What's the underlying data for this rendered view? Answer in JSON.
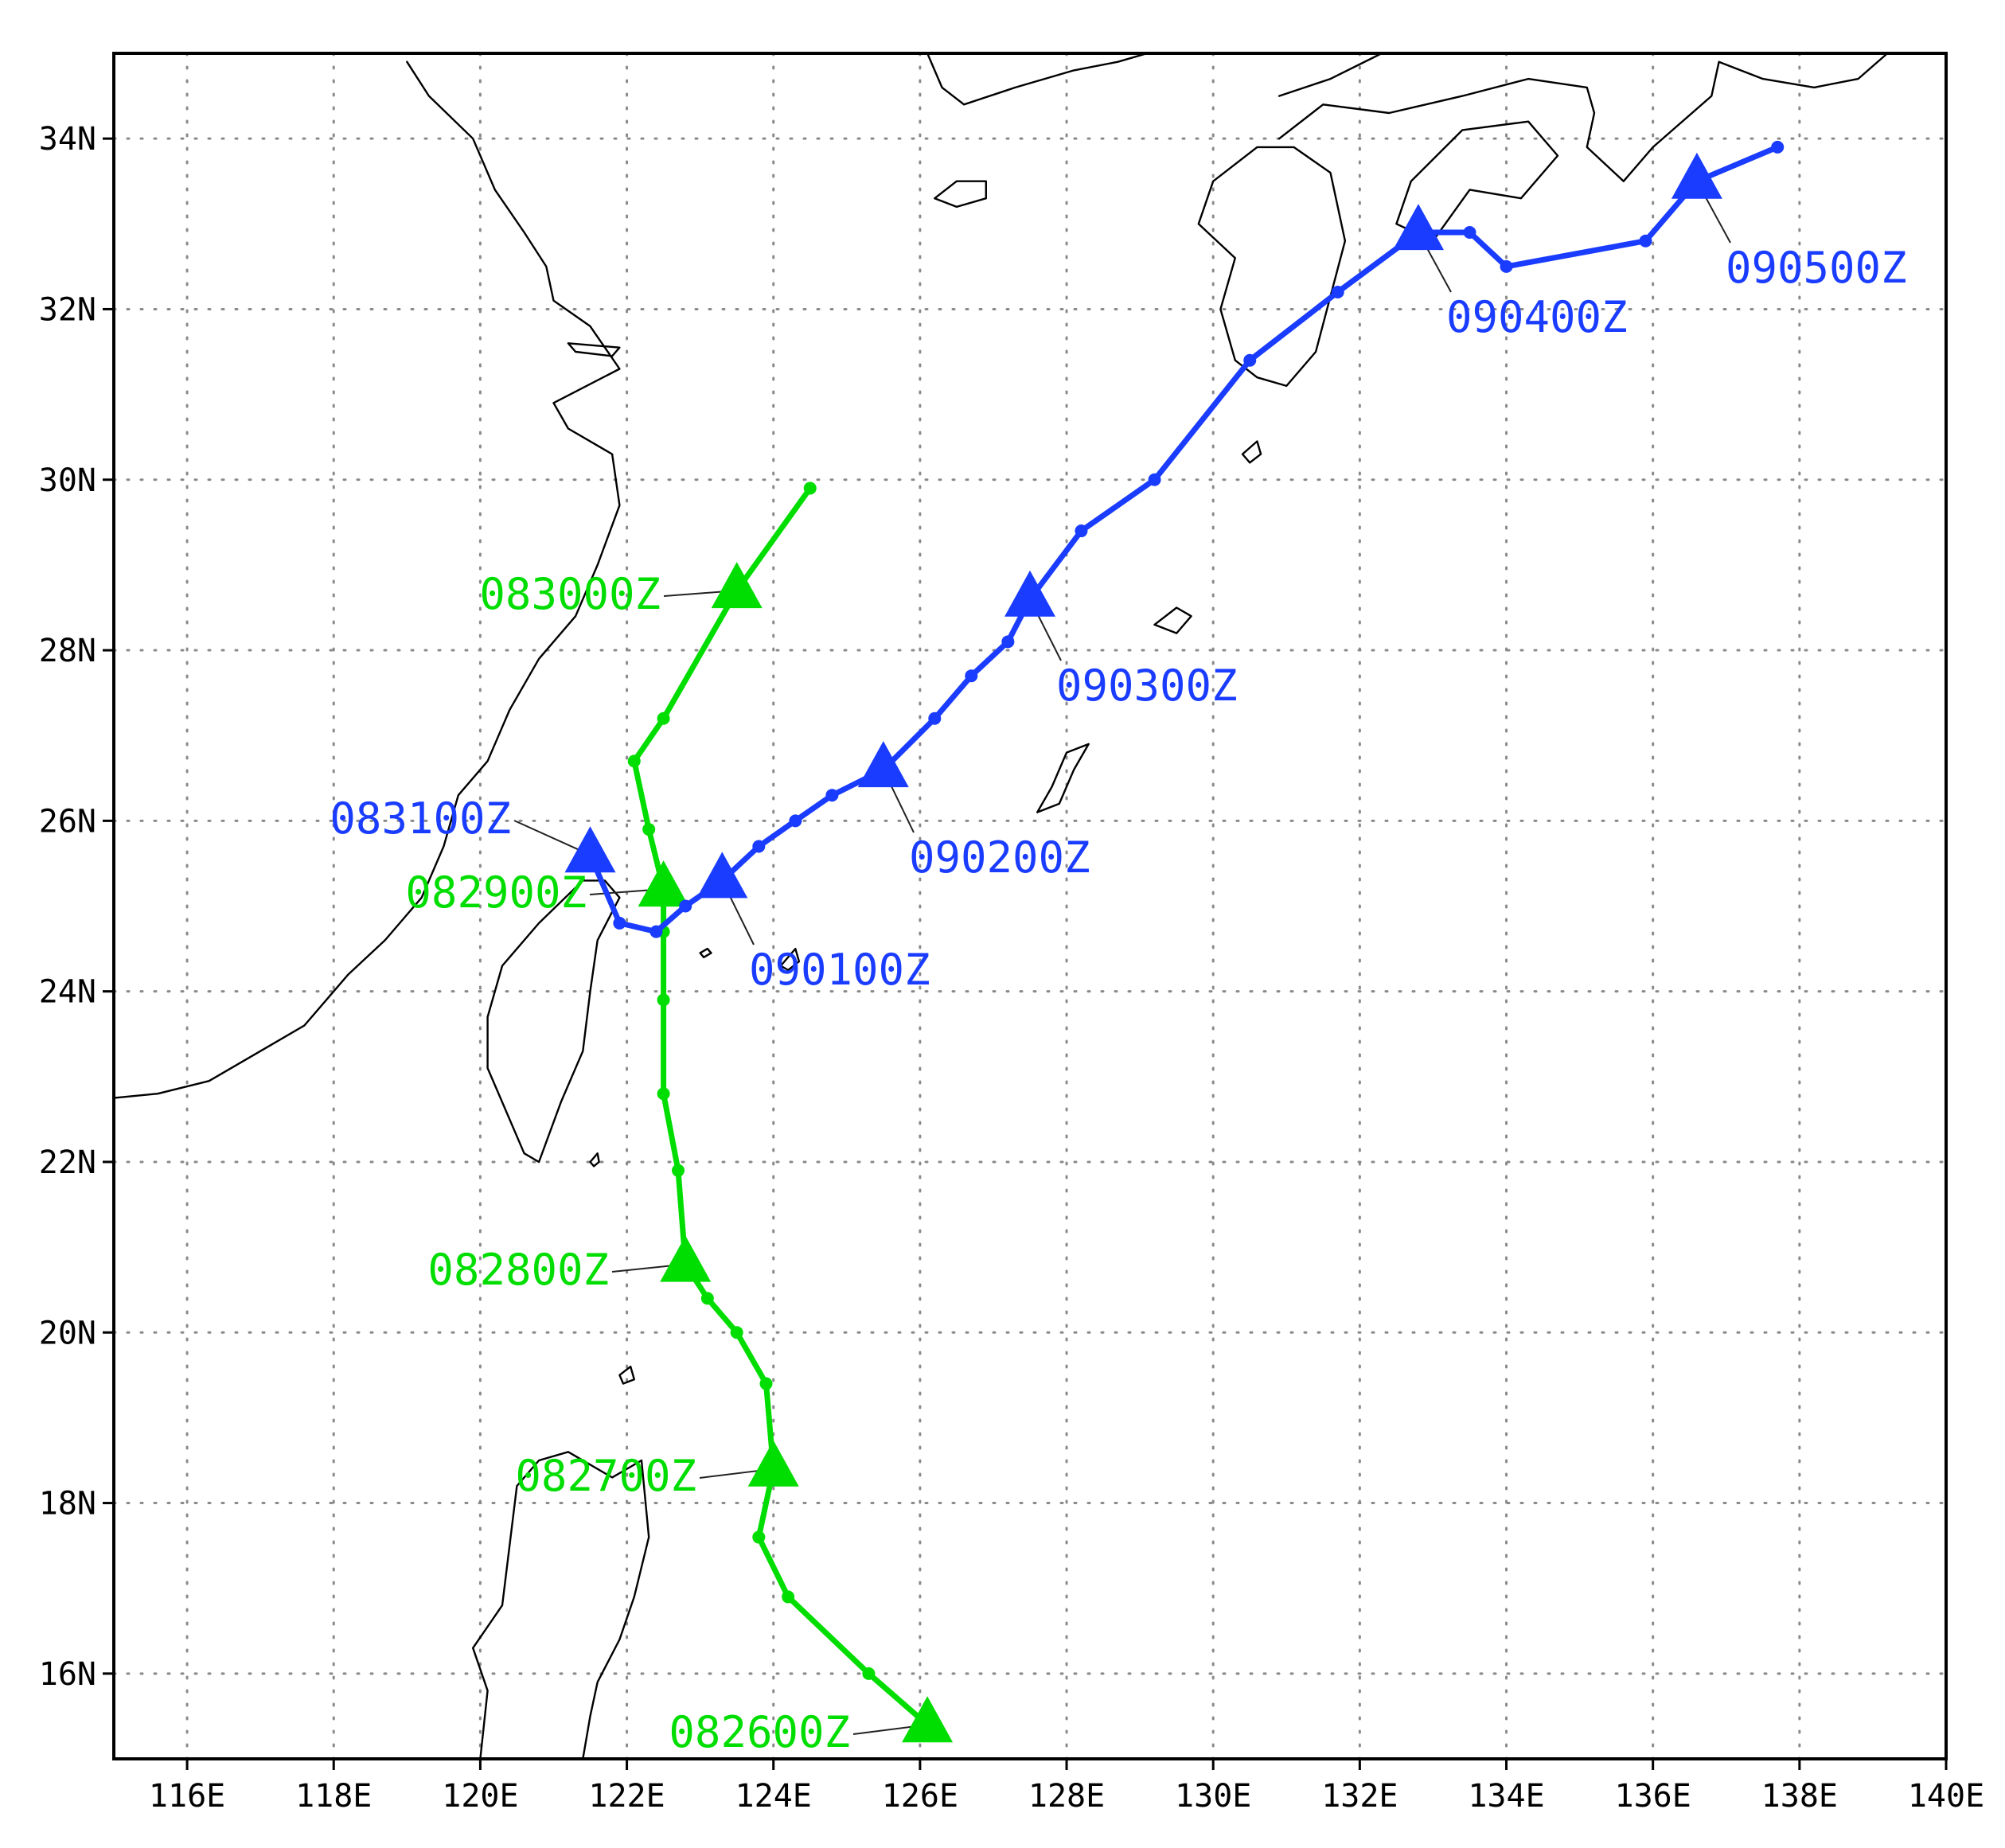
{
  "map": {
    "extent": {
      "lon": [
        115,
        140
      ],
      "lat": [
        15,
        35
      ]
    },
    "grid": true,
    "x_ticks": [
      {
        "value": 116,
        "label": "116E"
      },
      {
        "value": 118,
        "label": "118E"
      },
      {
        "value": 120,
        "label": "120E"
      },
      {
        "value": 122,
        "label": "122E"
      },
      {
        "value": 124,
        "label": "124E"
      },
      {
        "value": 126,
        "label": "126E"
      },
      {
        "value": 128,
        "label": "128E"
      },
      {
        "value": 130,
        "label": "130E"
      },
      {
        "value": 132,
        "label": "132E"
      },
      {
        "value": 134,
        "label": "134E"
      },
      {
        "value": 136,
        "label": "136E"
      },
      {
        "value": 138,
        "label": "138E"
      },
      {
        "value": 140,
        "label": "140E"
      }
    ],
    "y_ticks": [
      {
        "value": 16,
        "label": "16N"
      },
      {
        "value": 18,
        "label": "18N"
      },
      {
        "value": 20,
        "label": "20N"
      },
      {
        "value": 22,
        "label": "22N"
      },
      {
        "value": 24,
        "label": "24N"
      },
      {
        "value": 26,
        "label": "26N"
      },
      {
        "value": 28,
        "label": "28N"
      },
      {
        "value": 30,
        "label": "30N"
      },
      {
        "value": 32,
        "label": "32N"
      },
      {
        "value": 34,
        "label": "34N"
      }
    ]
  },
  "chart_data": {
    "type": "scatter",
    "x_unit": "longitude (degrees E)",
    "y_unit": "latitude (degrees N)",
    "xlim": [
      115,
      140
    ],
    "ylim": [
      15,
      35
    ],
    "grid": true,
    "series": [
      {
        "color": "#00dd00",
        "points": [
          [
            126.1,
            15.4
          ],
          [
            125.3,
            16.0
          ],
          [
            124.2,
            16.9
          ],
          [
            123.8,
            17.6
          ],
          [
            124.0,
            18.4
          ],
          [
            123.9,
            19.4
          ],
          [
            123.5,
            20.0
          ],
          [
            123.1,
            20.4
          ],
          [
            122.8,
            20.8
          ],
          [
            122.7,
            21.9
          ],
          [
            122.5,
            22.8
          ],
          [
            122.5,
            23.9
          ],
          [
            122.5,
            24.7
          ],
          [
            122.5,
            25.2
          ],
          [
            122.3,
            25.9
          ],
          [
            122.1,
            26.7
          ],
          [
            122.5,
            27.2
          ],
          [
            123.5,
            28.7
          ],
          [
            124.5,
            29.9
          ]
        ],
        "markers": [
          {
            "label": "082600Z",
            "lon": 126.1,
            "lat": 15.4
          },
          {
            "label": "082700Z",
            "lon": 124.0,
            "lat": 18.4
          },
          {
            "label": "082800Z",
            "lon": 122.8,
            "lat": 20.8
          },
          {
            "label": "082900Z",
            "lon": 122.5,
            "lat": 25.2
          },
          {
            "label": "083000Z",
            "lon": 123.5,
            "lat": 28.7
          }
        ]
      },
      {
        "color": "#1a3cff",
        "points": [
          [
            121.5,
            25.6
          ],
          [
            121.9,
            24.8
          ],
          [
            122.4,
            24.7
          ],
          [
            122.8,
            25.0
          ],
          [
            123.3,
            25.3
          ],
          [
            123.8,
            25.7
          ],
          [
            124.3,
            26.0
          ],
          [
            124.8,
            26.3
          ],
          [
            125.5,
            26.6
          ],
          [
            126.2,
            27.2
          ],
          [
            126.7,
            27.7
          ],
          [
            127.2,
            28.1
          ],
          [
            127.5,
            28.6
          ],
          [
            128.2,
            29.4
          ],
          [
            129.2,
            30.0
          ],
          [
            130.5,
            31.4
          ],
          [
            131.7,
            32.2
          ],
          [
            132.8,
            32.9
          ],
          [
            133.5,
            32.9
          ],
          [
            134.0,
            32.5
          ],
          [
            135.9,
            32.8
          ],
          [
            136.6,
            33.5
          ],
          [
            137.7,
            33.9
          ]
        ],
        "markers": [
          {
            "label": "083100Z",
            "lon": 121.5,
            "lat": 25.6
          },
          {
            "label": "090100Z",
            "lon": 123.3,
            "lat": 25.3
          },
          {
            "label": "090200Z",
            "lon": 125.5,
            "lat": 26.6
          },
          {
            "label": "090300Z",
            "lon": 127.5,
            "lat": 28.6
          },
          {
            "label": "090400Z",
            "lon": 132.8,
            "lat": 32.9
          },
          {
            "label": "090500Z",
            "lon": 136.6,
            "lat": 33.5
          }
        ]
      }
    ]
  }
}
